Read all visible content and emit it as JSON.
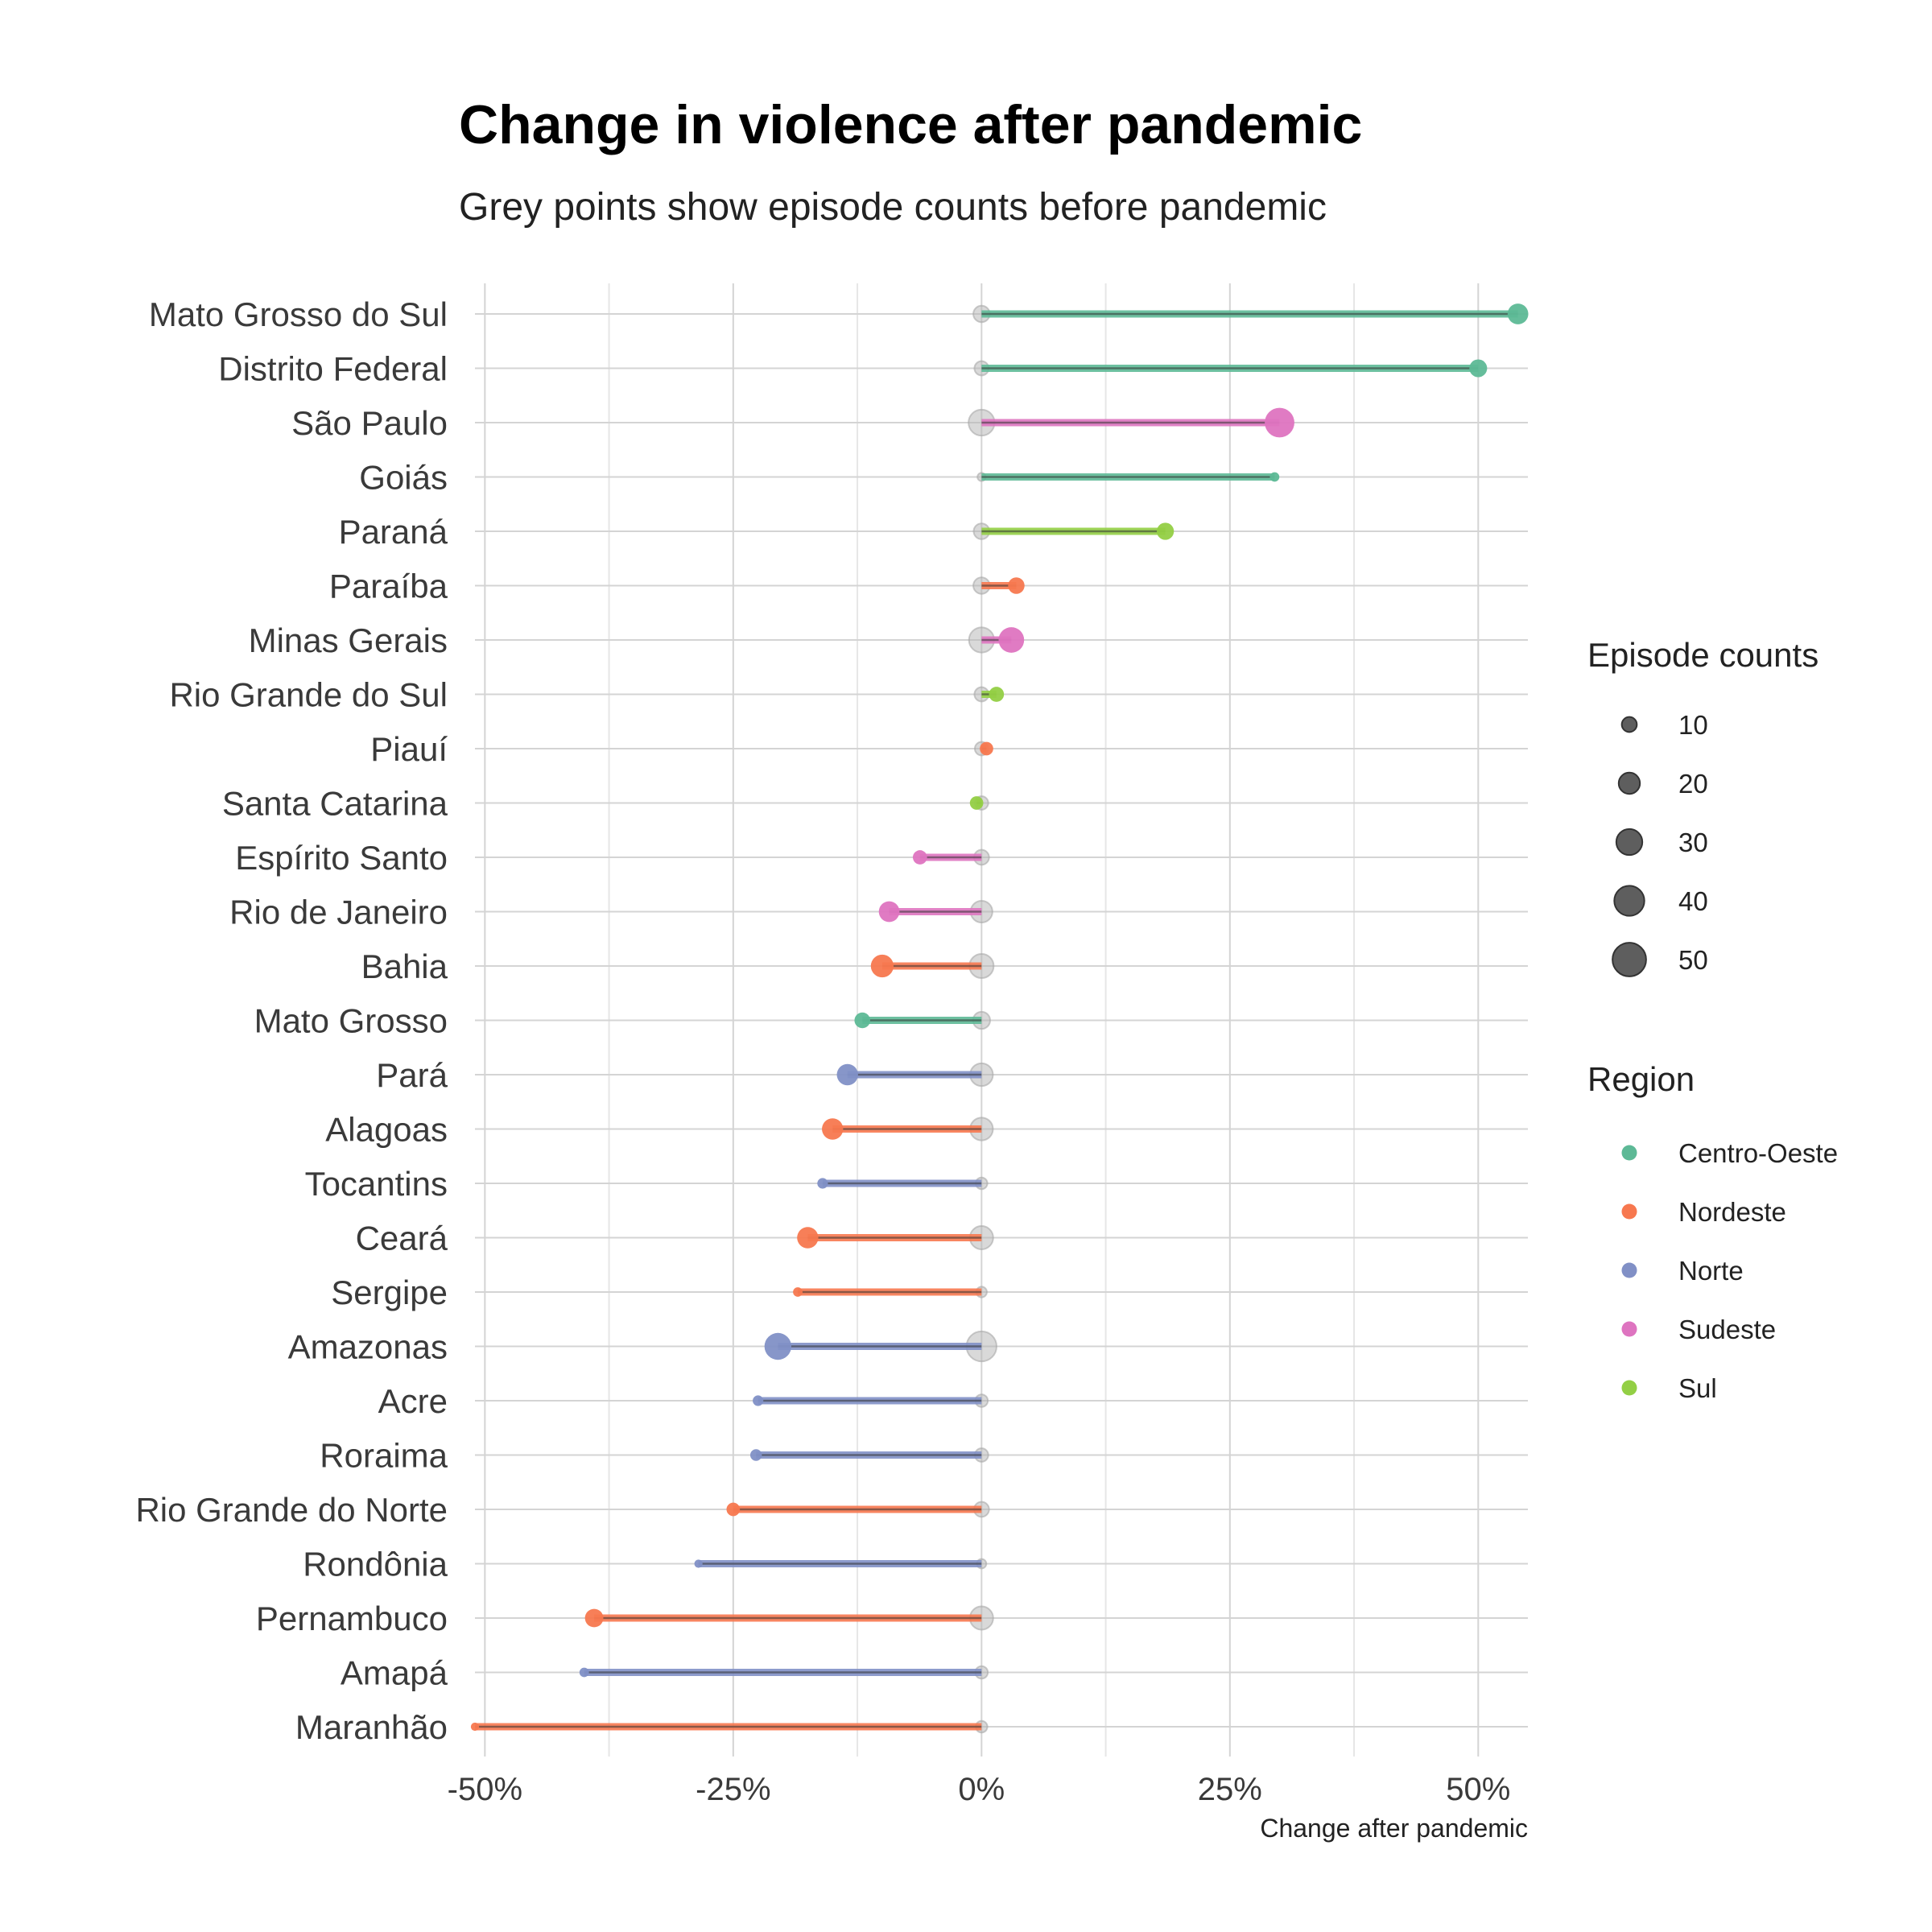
{
  "chart_data": {
    "type": "dumbbell",
    "title": "Change in violence after pandemic",
    "subtitle": "Grey points show episode counts before pandemic",
    "xlabel": "Change after pandemic",
    "xlim": [
      -0.51,
      0.55
    ],
    "x_ticks": [
      -0.5,
      -0.25,
      0,
      0.25,
      0.5
    ],
    "x_tick_labels": [
      "-50%",
      "-25%",
      "0%",
      "25%",
      "50%"
    ],
    "grid": true,
    "legend_placement": "right",
    "size_legend": {
      "title": "Episode counts",
      "values": [
        10,
        20,
        30,
        40,
        50
      ],
      "labels": [
        "10",
        "20",
        "30",
        "40",
        "50"
      ]
    },
    "region_legend": {
      "title": "Region",
      "items": [
        {
          "name": "Centro-Oeste",
          "color": "#5db996"
        },
        {
          "name": "Nordeste",
          "color": "#f7784f"
        },
        {
          "name": "Norte",
          "color": "#8190c6"
        },
        {
          "name": "Sudeste",
          "color": "#de74c0"
        },
        {
          "name": "Sul",
          "color": "#93cf45"
        }
      ]
    },
    "rows": [
      {
        "state": "Mato Grosso do Sul",
        "region": "Centro-Oeste",
        "change": 0.54,
        "count_before": 12,
        "count_after": 19
      },
      {
        "state": "Distrito Federal",
        "region": "Centro-Oeste",
        "change": 0.5,
        "count_before": 9,
        "count_after": 14
      },
      {
        "state": "São Paulo",
        "region": "Sudeste",
        "change": 0.3,
        "count_before": 30,
        "count_after": 39
      },
      {
        "state": "Goiás",
        "region": "Centro-Oeste",
        "change": 0.295,
        "count_before": 3,
        "count_after": 4
      },
      {
        "state": "Paraná",
        "region": "Sul",
        "change": 0.185,
        "count_before": 11,
        "count_after": 13
      },
      {
        "state": "Paraíba",
        "region": "Nordeste",
        "change": 0.035,
        "count_before": 12,
        "count_after": 12
      },
      {
        "state": "Minas Gerais",
        "region": "Sudeste",
        "change": 0.03,
        "count_before": 28,
        "count_after": 29
      },
      {
        "state": "Rio Grande do Sul",
        "region": "Sul",
        "change": 0.015,
        "count_before": 9,
        "count_after": 10
      },
      {
        "state": "Piauí",
        "region": "Nordeste",
        "change": 0.005,
        "count_before": 8,
        "count_after": 8
      },
      {
        "state": "Santa Catarina",
        "region": "Sul",
        "change": -0.005,
        "count_before": 8,
        "count_after": 8
      },
      {
        "state": "Espírito Santo",
        "region": "Sudeste",
        "change": -0.062,
        "count_before": 10,
        "count_after": 9
      },
      {
        "state": "Rio de Janeiro",
        "region": "Sudeste",
        "change": -0.093,
        "count_before": 21,
        "count_after": 19
      },
      {
        "state": "Bahia",
        "region": "Nordeste",
        "change": -0.1,
        "count_before": 26,
        "count_after": 23
      },
      {
        "state": "Mato Grosso",
        "region": "Centro-Oeste",
        "change": -0.12,
        "count_before": 13,
        "count_after": 11
      },
      {
        "state": "Pará",
        "region": "Norte",
        "change": -0.135,
        "count_before": 23,
        "count_after": 20
      },
      {
        "state": "Alagoas",
        "region": "Nordeste",
        "change": -0.15,
        "count_before": 23,
        "count_after": 20
      },
      {
        "state": "Tocantins",
        "region": "Norte",
        "change": -0.16,
        "count_before": 6,
        "count_after": 5
      },
      {
        "state": "Ceará",
        "region": "Nordeste",
        "change": -0.175,
        "count_before": 24,
        "count_after": 20
      },
      {
        "state": "Sergipe",
        "region": "Nordeste",
        "change": -0.185,
        "count_before": 5,
        "count_after": 4
      },
      {
        "state": "Amazonas",
        "region": "Norte",
        "change": -0.205,
        "count_before": 40,
        "count_after": 32
      },
      {
        "state": "Acre",
        "region": "Norte",
        "change": -0.225,
        "count_before": 7,
        "count_after": 5
      },
      {
        "state": "Roraima",
        "region": "Norte",
        "change": -0.227,
        "count_before": 8,
        "count_after": 6
      },
      {
        "state": "Rio Grande do Norte",
        "region": "Nordeste",
        "change": -0.25,
        "count_before": 10,
        "count_after": 8
      },
      {
        "state": "Rondônia",
        "region": "Norte",
        "change": -0.285,
        "count_before": 4,
        "count_after": 3
      },
      {
        "state": "Pernambuco",
        "region": "Nordeste",
        "change": -0.39,
        "count_before": 24,
        "count_after": 15
      },
      {
        "state": "Amapá",
        "region": "Norte",
        "change": -0.4,
        "count_before": 7,
        "count_after": 4
      },
      {
        "state": "Maranhão",
        "region": "Nordeste",
        "change": -0.51,
        "count_before": 6,
        "count_after": 3
      }
    ]
  }
}
